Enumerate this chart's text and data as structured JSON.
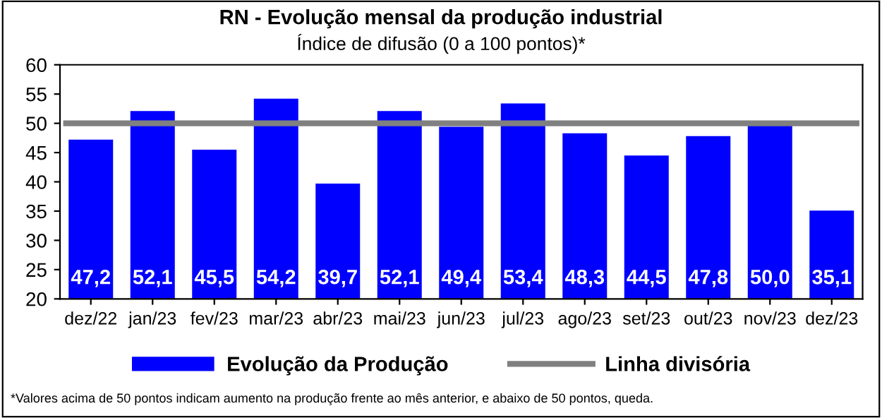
{
  "chart_data": {
    "type": "bar",
    "title": "RN - Evolução mensal da produção industrial",
    "subtitle": "Índice de difusão (0 a 100 pontos)*",
    "categories": [
      "dez/22",
      "jan/23",
      "fev/23",
      "mar/23",
      "abr/23",
      "mai/23",
      "jun/23",
      "jul/23",
      "ago/23",
      "set/23",
      "out/23",
      "nov/23",
      "dez/23"
    ],
    "series": [
      {
        "name": "Evolução da Produção",
        "color": "#0000ff",
        "values": [
          47.2,
          52.1,
          45.5,
          54.2,
          39.7,
          52.1,
          49.4,
          53.4,
          48.3,
          44.5,
          47.8,
          50.0,
          35.1
        ],
        "value_labels": [
          "47,2",
          "52,1",
          "45,5",
          "54,2",
          "39,7",
          "52,1",
          "49,4",
          "53,4",
          "48,3",
          "44,5",
          "47,8",
          "50,0",
          "35,1"
        ]
      }
    ],
    "ref_lines": [
      {
        "axis": "y",
        "value": 50,
        "label": "Linha divisória",
        "color": "#808080"
      }
    ],
    "ylim": [
      20,
      60
    ],
    "yticks": [
      20,
      25,
      30,
      35,
      40,
      45,
      50,
      55,
      60
    ],
    "grid": false,
    "legend": "bottom",
    "annotations": [
      "*Valores acima de 50 pontos indicam aumento na produção frente ao mês anterior, e abaixo de 50 pontos, queda."
    ]
  }
}
